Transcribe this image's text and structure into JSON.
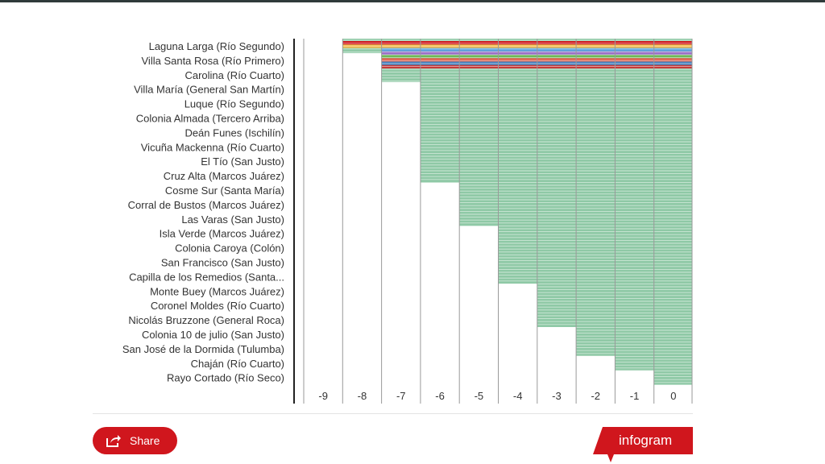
{
  "chart_data": {
    "type": "bar",
    "orientation": "horizontal",
    "categories": [
      "Laguna Larga (Río Segundo)",
      "Villa Santa Rosa (Río Primero)",
      "Carolina (Río Cuarto)",
      "Villa María (General San Martín)",
      "Luque (Río Segundo)",
      "Colonia Almada (Tercero Arriba)",
      "Deán Funes (Ischilín)",
      "Vicuña Mackenna (Río Cuarto)",
      "El Tío (San Justo)",
      "Cruz Alta (Marcos Juárez)",
      "Cosme Sur (Santa María)",
      "Corral de Bustos (Marcos Juárez)",
      "Las Varas (San Justo)",
      "Isla Verde (Marcos Juárez)",
      "Colonia Caroya (Colón)",
      "San Francisco (San Justo)",
      "Capilla de los Remedios (Santa...",
      "Monte Buey (Marcos Juárez)",
      "Coronel Moldes (Río Cuarto)",
      "Nicolás Bruzzone (General Roca)",
      "Colonia 10 de julio (San Justo)",
      "San José de la Dormida (Tulumba)",
      "Chaján (Río Cuarto)",
      "Rayo Cortado (Río Seco)"
    ],
    "x_ticks": [
      "-9",
      "-8",
      "-7",
      "-6",
      "-5",
      "-4",
      "-3",
      "-2",
      "-1",
      "0"
    ],
    "xlim": [
      -9,
      0
    ],
    "grid": true,
    "legend": "none",
    "step_edges": [
      {
        "x": -9,
        "y_end_index": 0
      },
      {
        "x": -8,
        "y_end_index": 1
      },
      {
        "x": -7,
        "y_end_index": 3
      },
      {
        "x": -6,
        "y_end_index": 10
      },
      {
        "x": -5,
        "y_end_index": 13
      },
      {
        "x": -4,
        "y_end_index": 17
      },
      {
        "x": -3,
        "y_end_index": 20
      },
      {
        "x": -2,
        "y_end_index": 22
      },
      {
        "x": -1,
        "y_end_index": 23
      },
      {
        "x": 0,
        "y_end_index": 24
      }
    ],
    "band_colors": [
      "#d0161d",
      "#f3b84a",
      "#5aa3e0",
      "#9b6fc7",
      "#6fb85a",
      "#e0604c",
      "#3f7fbf",
      "#c43a3a"
    ],
    "fill_color": "#8fc9a6",
    "stripe_color": "#ffffff"
  },
  "footer": {
    "share_label": "Share",
    "brand_label": "infogram",
    "brand_color": "#d0161d"
  }
}
